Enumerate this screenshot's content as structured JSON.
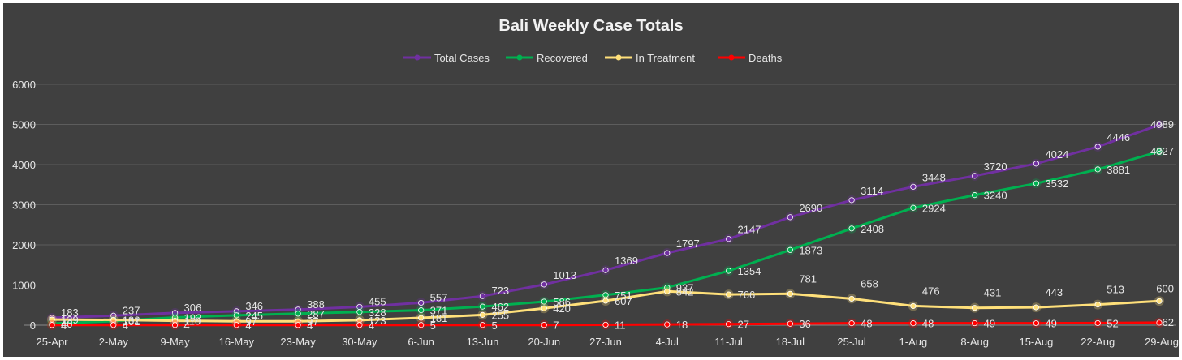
{
  "chart_data": {
    "type": "line",
    "title": "Bali Weekly Case Totals",
    "xlabel": "",
    "ylabel": "",
    "ylim": [
      0,
      6000
    ],
    "yticks": [
      0,
      1000,
      2000,
      3000,
      4000,
      5000,
      6000
    ],
    "grid": true,
    "legend_position": "top",
    "categories": [
      "25-Apr",
      "2-May",
      "9-May",
      "16-May",
      "23-May",
      "30-May",
      "6-Jun",
      "13-Jun",
      "20-Jun",
      "27-Jun",
      "4-Jul",
      "11-Jul",
      "18-Jul",
      "25-Jul",
      "1-Aug",
      "8-Aug",
      "15-Aug",
      "22-Aug",
      "29-Aug"
    ],
    "series": [
      {
        "name": "Total Cases",
        "color": "#7030a0",
        "values": [
          183,
          237,
          306,
          346,
          388,
          455,
          557,
          723,
          1013,
          1369,
          1797,
          2147,
          2690,
          3114,
          3448,
          3720,
          4024,
          4446,
          4989
        ]
      },
      {
        "name": "Recovered",
        "color": "#00b050",
        "values": [
          40,
          101,
          192,
          245,
          287,
          328,
          371,
          462,
          586,
          751,
          937,
          1354,
          1873,
          2408,
          2924,
          3240,
          3532,
          3881,
          4327
        ]
      },
      {
        "name": "In Treatment",
        "color": "#ffe07a",
        "values": [
          139,
          132,
          110,
          97,
          97,
          123,
          181,
          255,
          420,
          607,
          842,
          766,
          781,
          658,
          476,
          431,
          443,
          513,
          600
        ]
      },
      {
        "name": "Deaths",
        "color": "#ff0000",
        "values": [
          4,
          4,
          4,
          4,
          4,
          4,
          5,
          5,
          7,
          11,
          18,
          27,
          36,
          48,
          48,
          49,
          49,
          52,
          62
        ]
      }
    ]
  }
}
